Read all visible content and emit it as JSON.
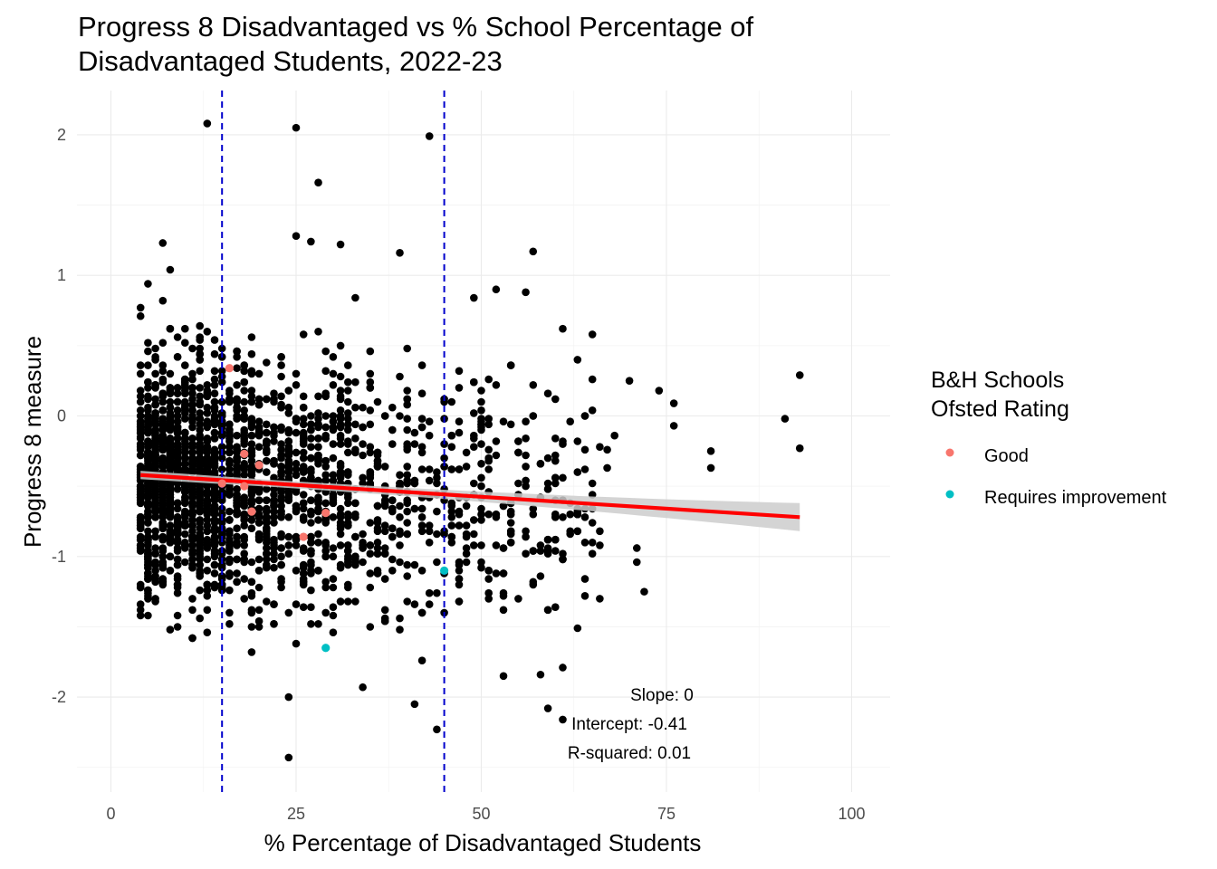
{
  "chart_data": {
    "type": "scatter",
    "title_lines": [
      "Progress 8 Disadvantaged vs % School Percentage of",
      "Disadvantaged Students, 2022-23"
    ],
    "xlabel": "% Percentage of Disadvantaged Students",
    "ylabel": "Progress 8 measure",
    "xlim": [
      -2,
      105
    ],
    "ylim": [
      -2.6,
      2.3
    ],
    "x_ticks": [
      0,
      25,
      50,
      75,
      100
    ],
    "y_ticks": [
      -2,
      -1,
      0,
      1,
      2
    ],
    "grid": true,
    "legend": {
      "title_lines": [
        "B&H Schools",
        "Ofsted Rating"
      ],
      "placement": "right",
      "entries": [
        {
          "label": "Good",
          "color": "#F8766D"
        },
        {
          "label": "Requires improvement",
          "color": "#00BFC4"
        }
      ]
    },
    "vlines": [
      15,
      45
    ],
    "vline_color": "#0000CC",
    "regression": {
      "color": "#FF0000",
      "band_color": "#CCCCCC",
      "x_start": 4,
      "x_end": 93,
      "y_start": -0.42,
      "y_end": -0.72,
      "band_start": 0.03,
      "band_end": 0.1
    },
    "annotations": [
      "Slope: 0",
      "Intercept: -0.41",
      "R-squared: 0.01"
    ],
    "background_point_color": "#000000",
    "outlier_points": [
      {
        "x": 13,
        "y": 2.08
      },
      {
        "x": 25,
        "y": 2.05
      },
      {
        "x": 43,
        "y": 1.99
      },
      {
        "x": 28,
        "y": 1.66
      },
      {
        "x": 25,
        "y": 1.28
      },
      {
        "x": 27,
        "y": 1.24
      },
      {
        "x": 31,
        "y": 1.22
      },
      {
        "x": 7,
        "y": 1.23
      },
      {
        "x": 57,
        "y": 1.17
      },
      {
        "x": 39,
        "y": 1.16
      },
      {
        "x": 93,
        "y": 0.29
      },
      {
        "x": 91,
        "y": -0.02
      },
      {
        "x": 93,
        "y": -0.23
      },
      {
        "x": 81,
        "y": -0.25
      },
      {
        "x": 81,
        "y": -0.37
      },
      {
        "x": 76,
        "y": 0.09
      },
      {
        "x": 74,
        "y": 0.18
      },
      {
        "x": 76,
        "y": -0.07
      },
      {
        "x": 70,
        "y": 0.25
      },
      {
        "x": 72,
        "y": -1.25
      },
      {
        "x": 71,
        "y": -1.04
      },
      {
        "x": 67,
        "y": -0.37
      },
      {
        "x": 65,
        "y": 0.58
      },
      {
        "x": 61,
        "y": 0.62
      },
      {
        "x": 59,
        "y": -2.08
      },
      {
        "x": 61,
        "y": -2.16
      },
      {
        "x": 41,
        "y": -2.05
      },
      {
        "x": 44,
        "y": -2.23
      },
      {
        "x": 24,
        "y": -2.0
      },
      {
        "x": 24,
        "y": -2.43
      },
      {
        "x": 34,
        "y": -1.93
      },
      {
        "x": 53,
        "y": -1.85
      },
      {
        "x": 58,
        "y": -1.84
      },
      {
        "x": 61,
        "y": -1.79
      },
      {
        "x": 4,
        "y": 0.77
      },
      {
        "x": 4,
        "y": 0.71
      },
      {
        "x": 4,
        "y": -0.15
      },
      {
        "x": 4,
        "y": -0.43
      },
      {
        "x": 5,
        "y": -1.08
      },
      {
        "x": 71,
        "y": -0.94
      },
      {
        "x": 63,
        "y": -1.51
      },
      {
        "x": 66,
        "y": -1.3
      },
      {
        "x": 5,
        "y": 0.94
      },
      {
        "x": 8,
        "y": 1.04
      },
      {
        "x": 56,
        "y": 0.88
      },
      {
        "x": 49,
        "y": 0.84
      },
      {
        "x": 52,
        "y": 0.9
      }
    ],
    "colored_points": [
      {
        "x": 16,
        "y": 0.34,
        "rating": "Good"
      },
      {
        "x": 18,
        "y": -0.27,
        "rating": "Good"
      },
      {
        "x": 20,
        "y": -0.35,
        "rating": "Good"
      },
      {
        "x": 15,
        "y": -0.48,
        "rating": "Good"
      },
      {
        "x": 18,
        "y": -0.5,
        "rating": "Good"
      },
      {
        "x": 19,
        "y": -0.68,
        "rating": "Good"
      },
      {
        "x": 29,
        "y": -0.69,
        "rating": "Good"
      },
      {
        "x": 26,
        "y": -0.86,
        "rating": "Good"
      },
      {
        "x": 45,
        "y": -1.1,
        "rating": "Requires improvement"
      },
      {
        "x": 29,
        "y": -1.65,
        "rating": "Requires improvement"
      }
    ]
  }
}
